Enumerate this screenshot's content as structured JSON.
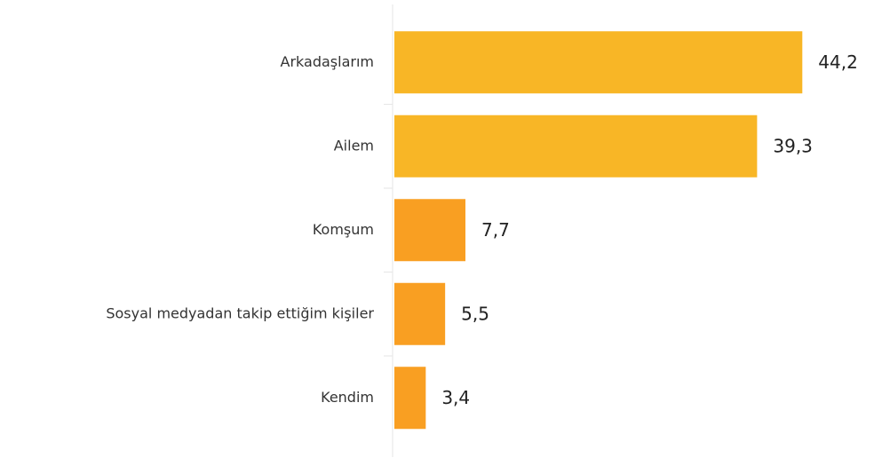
{
  "chart_data": {
    "type": "bar",
    "orientation": "horizontal",
    "categories": [
      "Arkadaşlarım",
      "Ailem",
      "Komşum",
      "Sosyal medyadan takip ettiğim kişiler",
      "Kendim"
    ],
    "values": [
      44.2,
      39.3,
      7.7,
      5.5,
      3.4
    ],
    "value_labels": [
      "44,2",
      "39,3",
      "7,7",
      "5,5",
      "3,4"
    ],
    "colors": [
      "#f8b626",
      "#f8b626",
      "#f99f22",
      "#f99f22",
      "#f99f22"
    ],
    "xlim": [
      0,
      46
    ]
  }
}
